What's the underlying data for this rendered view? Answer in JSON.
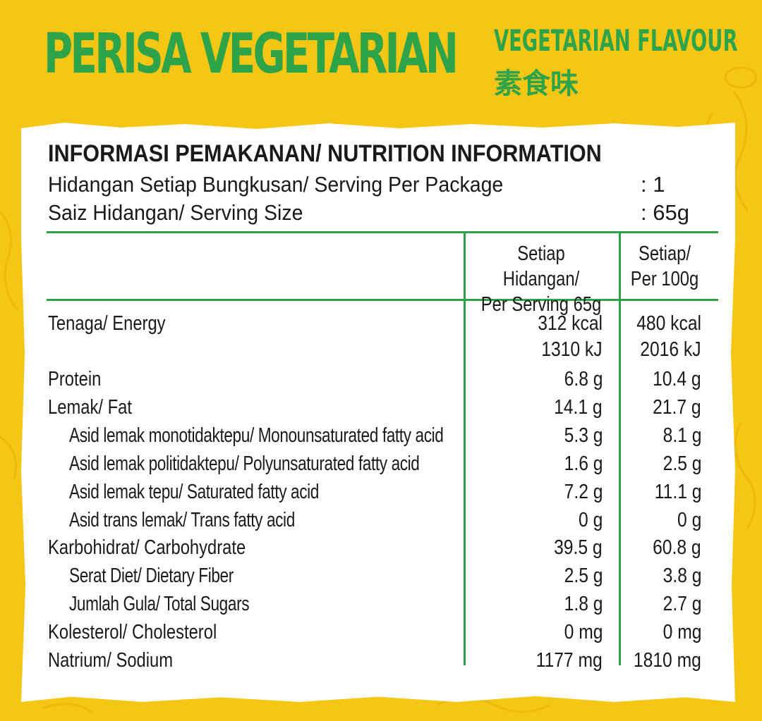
{
  "header": {
    "title_malay": "PERISA VEGETARIAN",
    "title_english": "VEGETARIAN FLAVOUR",
    "title_chinese": "素食味"
  },
  "nutrition": {
    "heading": "INFORMASI PEMAKANAN/ NUTRITION INFORMATION",
    "servings_label": "Hidangan Setiap Bungkusan/ Serving Per Package",
    "servings_value": ": 1",
    "size_label": "Saiz Hidangan/ Serving Size",
    "size_value": ": 65g",
    "col_per_serving_line1": "Setiap Hidangan/",
    "col_per_serving_line2": "Per Serving 65g",
    "col_per_100_line1": "Setiap/",
    "col_per_100_line2": "Per 100g",
    "rows": [
      {
        "label": "Tenaga/ Energy",
        "per_serving": "312 kcal",
        "per_100g": "480 kcal"
      },
      {
        "label": "",
        "per_serving": "1310 kJ",
        "per_100g": "2016 kJ"
      },
      {
        "label": "Protein",
        "per_serving": "6.8 g",
        "per_100g": "10.4 g"
      },
      {
        "label": "Lemak/ Fat",
        "per_serving": "14.1 g",
        "per_100g": "21.7 g"
      },
      {
        "label": "Asid lemak monotidaktepu/ Monounsaturated fatty acid",
        "per_serving": "5.3 g",
        "per_100g": "8.1 g"
      },
      {
        "label": "Asid lemak politidaktepu/ Polyunsaturated fatty acid",
        "per_serving": "1.6 g",
        "per_100g": "2.5 g"
      },
      {
        "label": "Asid lemak tepu/ Saturated fatty acid",
        "per_serving": "7.2 g",
        "per_100g": "11.1 g"
      },
      {
        "label": "Asid trans lemak/ Trans fatty acid",
        "per_serving": "0 g",
        "per_100g": "0 g"
      },
      {
        "label": "Karbohidrat/ Carbohydrate",
        "per_serving": "39.5 g",
        "per_100g": "60.8 g"
      },
      {
        "label": "Serat Diet/ Dietary Fiber",
        "per_serving": "2.5 g",
        "per_100g": "3.8 g"
      },
      {
        "label": "Jumlah Gula/ Total Sugars",
        "per_serving": "1.8 g",
        "per_100g": "2.7 g"
      },
      {
        "label": "Kolesterol/ Cholesterol",
        "per_serving": "0 mg",
        "per_100g": "0 mg"
      },
      {
        "label": "Natrium/ Sodium",
        "per_serving": "1177 mg",
        "per_100g": "1810 mg"
      }
    ]
  },
  "colors": {
    "background": "#f5c613",
    "accent_green": "#2ea44a",
    "panel": "#ffffff",
    "text": "#1a1a1a"
  }
}
